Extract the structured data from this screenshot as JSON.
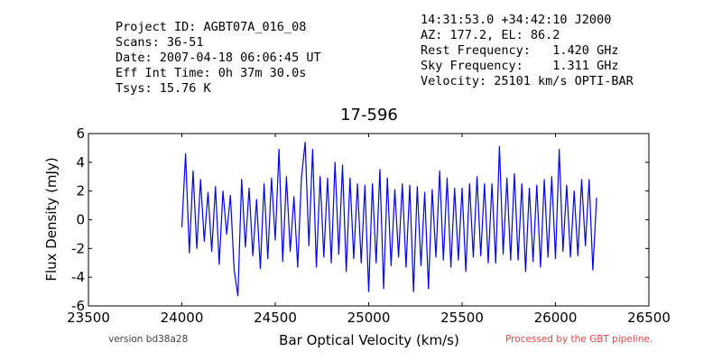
{
  "header": {
    "left": [
      "Project ID: AGBT07A_016_08",
      "Scans: 36-51",
      "Date: 2007-04-18 06:06:45 UT",
      "Eff Int Time: 0h 37m 30.0s",
      "Tsys: 15.76 K"
    ],
    "right": [
      "14:31:53.0 +34:42:10 J2000",
      "AZ: 177.2, EL: 86.2",
      "Rest Frequency:   1.420 GHz",
      "Sky Frequency:    1.311 GHz",
      "Velocity: 25101 km/s OPTI-BAR"
    ]
  },
  "footer": {
    "version": "version bd38a28",
    "processed": "Processed by the GBT pipeline."
  },
  "colors": {
    "line": "#0000ff",
    "footer_processed": "#ee4444"
  },
  "chart_data": {
    "type": "line",
    "title": "17-596",
    "xlabel": "Bar Optical Velocity (km/s)",
    "ylabel": "Flux Density (mJy)",
    "xlim": [
      23500,
      26500
    ],
    "ylim": [
      -6,
      6
    ],
    "xticks": [
      23500,
      24000,
      24500,
      25000,
      25500,
      26000,
      26500
    ],
    "yticks": [
      -6,
      -4,
      -2,
      0,
      2,
      4,
      6
    ],
    "grid": false,
    "series": [
      {
        "x": [
          24000,
          24020,
          24040,
          24060,
          24080,
          24100,
          24120,
          24140,
          24160,
          24180,
          24200,
          24220,
          24240,
          24260,
          24280,
          24300,
          24320,
          24340,
          24360,
          24380,
          24400,
          24420,
          24440,
          24460,
          24480,
          24500,
          24520,
          24540,
          24560,
          24580,
          24600,
          24620,
          24640,
          24660,
          24680,
          24700,
          24720,
          24740,
          24760,
          24780,
          24800,
          24820,
          24840,
          24860,
          24880,
          24900,
          24920,
          24940,
          24960,
          24980,
          25000,
          25020,
          25040,
          25060,
          25080,
          25100,
          25120,
          25140,
          25160,
          25180,
          25200,
          25220,
          25240,
          25260,
          25280,
          25300,
          25320,
          25340,
          25360,
          25380,
          25400,
          25420,
          25440,
          25460,
          25480,
          25500,
          25520,
          25540,
          25560,
          25580,
          25600,
          25620,
          25640,
          25660,
          25680,
          25700,
          25720,
          25740,
          25760,
          25780,
          25800,
          25820,
          25840,
          25860,
          25880,
          25900,
          25920,
          25940,
          25960,
          25980,
          26000,
          26020,
          26040,
          26060,
          26080,
          26100,
          26120,
          26140,
          26160,
          26180,
          26200,
          26220
        ],
        "y": [
          -0.5,
          4.6,
          -2.3,
          3.4,
          -2.0,
          2.8,
          -1.5,
          1.9,
          -2.2,
          2.3,
          -3.1,
          2.0,
          -1.0,
          1.7,
          -3.5,
          -5.3,
          2.8,
          -1.9,
          2.2,
          -2.5,
          1.4,
          -3.4,
          2.5,
          -2.7,
          2.9,
          -1.4,
          4.9,
          -2.9,
          3.0,
          -2.2,
          1.6,
          -3.3,
          2.9,
          5.4,
          -1.8,
          4.9,
          -3.3,
          3.0,
          -2.6,
          2.9,
          -3.0,
          4.0,
          -2.4,
          3.8,
          -3.6,
          2.9,
          -2.7,
          2.5,
          -3.0,
          2.4,
          -5.0,
          2.5,
          -3.0,
          3.5,
          -4.8,
          2.9,
          -3.2,
          2.1,
          -2.6,
          2.5,
          -3.3,
          2.4,
          -5.0,
          2.3,
          -3.2,
          1.9,
          -4.8,
          2.1,
          -2.6,
          3.4,
          -2.8,
          2.9,
          -3.3,
          2.2,
          -2.8,
          2.2,
          -3.6,
          2.5,
          -2.6,
          3.0,
          -2.5,
          2.5,
          -3.0,
          2.5,
          -3.0,
          5.1,
          -2.4,
          2.9,
          -2.8,
          3.2,
          -2.8,
          2.5,
          -3.6,
          2.2,
          -2.9,
          2.4,
          -3.3,
          2.8,
          -2.6,
          3.0,
          -2.7,
          4.9,
          -2.2,
          2.4,
          -2.6,
          2.0,
          -2.5,
          2.8,
          -1.8,
          2.8,
          -3.5,
          1.5
        ]
      }
    ]
  }
}
